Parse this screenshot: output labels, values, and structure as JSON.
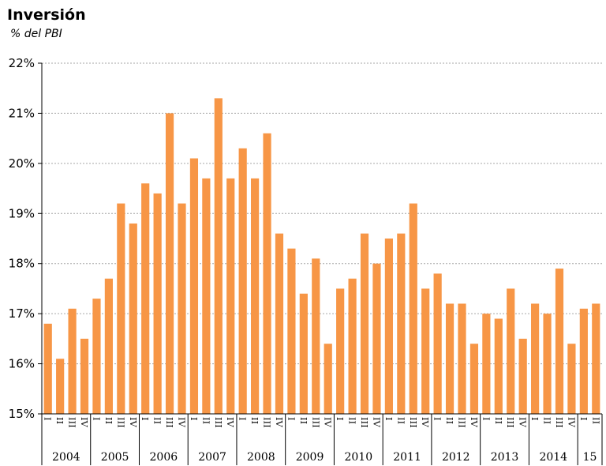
{
  "title": "Inversión",
  "subtitle": "% del PBI",
  "colors": {
    "bar": "#F79646",
    "grid": "#A6A6A6",
    "axis": "#000000"
  },
  "chart_data": {
    "type": "bar",
    "title": "Inversión",
    "subtitle": "% del PBI",
    "xlabel": "",
    "ylabel": "",
    "ylim": [
      15,
      22
    ],
    "yticks": [
      "15%",
      "16%",
      "17%",
      "18%",
      "19%",
      "20%",
      "21%",
      "22%"
    ],
    "grid": true,
    "legend": "none",
    "years": [
      {
        "label": "2004",
        "quarters": [
          "I",
          "II",
          "III",
          "IV"
        ]
      },
      {
        "label": "2005",
        "quarters": [
          "I",
          "II",
          "III",
          "IV"
        ]
      },
      {
        "label": "2006",
        "quarters": [
          "I",
          "II",
          "III",
          "IV"
        ]
      },
      {
        "label": "2007",
        "quarters": [
          "I",
          "II",
          "III",
          "IV"
        ]
      },
      {
        "label": "2008",
        "quarters": [
          "I",
          "II",
          "III",
          "IV"
        ]
      },
      {
        "label": "2009",
        "quarters": [
          "I",
          "II",
          "III",
          "IV"
        ]
      },
      {
        "label": "2010",
        "quarters": [
          "I",
          "II",
          "III",
          "IV"
        ]
      },
      {
        "label": "2011",
        "quarters": [
          "I",
          "II",
          "III",
          "IV"
        ]
      },
      {
        "label": "2012",
        "quarters": [
          "I",
          "II",
          "III",
          "IV"
        ]
      },
      {
        "label": "2013",
        "quarters": [
          "I",
          "II",
          "III",
          "IV"
        ]
      },
      {
        "label": "2014",
        "quarters": [
          "I",
          "II",
          "III",
          "IV"
        ]
      },
      {
        "label": "15",
        "quarters": [
          "I",
          "II"
        ]
      }
    ],
    "values": [
      16.8,
      16.1,
      17.1,
      16.5,
      17.3,
      17.7,
      19.2,
      18.8,
      19.6,
      19.4,
      21.0,
      19.2,
      20.1,
      19.7,
      21.3,
      19.7,
      20.3,
      19.7,
      20.6,
      18.6,
      18.3,
      17.4,
      18.1,
      16.4,
      17.5,
      17.7,
      18.6,
      18.0,
      18.5,
      18.6,
      19.2,
      17.5,
      17.8,
      17.2,
      17.2,
      16.4,
      17.0,
      16.9,
      17.5,
      16.5,
      17.2,
      17.0,
      17.9,
      16.4,
      17.1,
      17.2
    ]
  }
}
